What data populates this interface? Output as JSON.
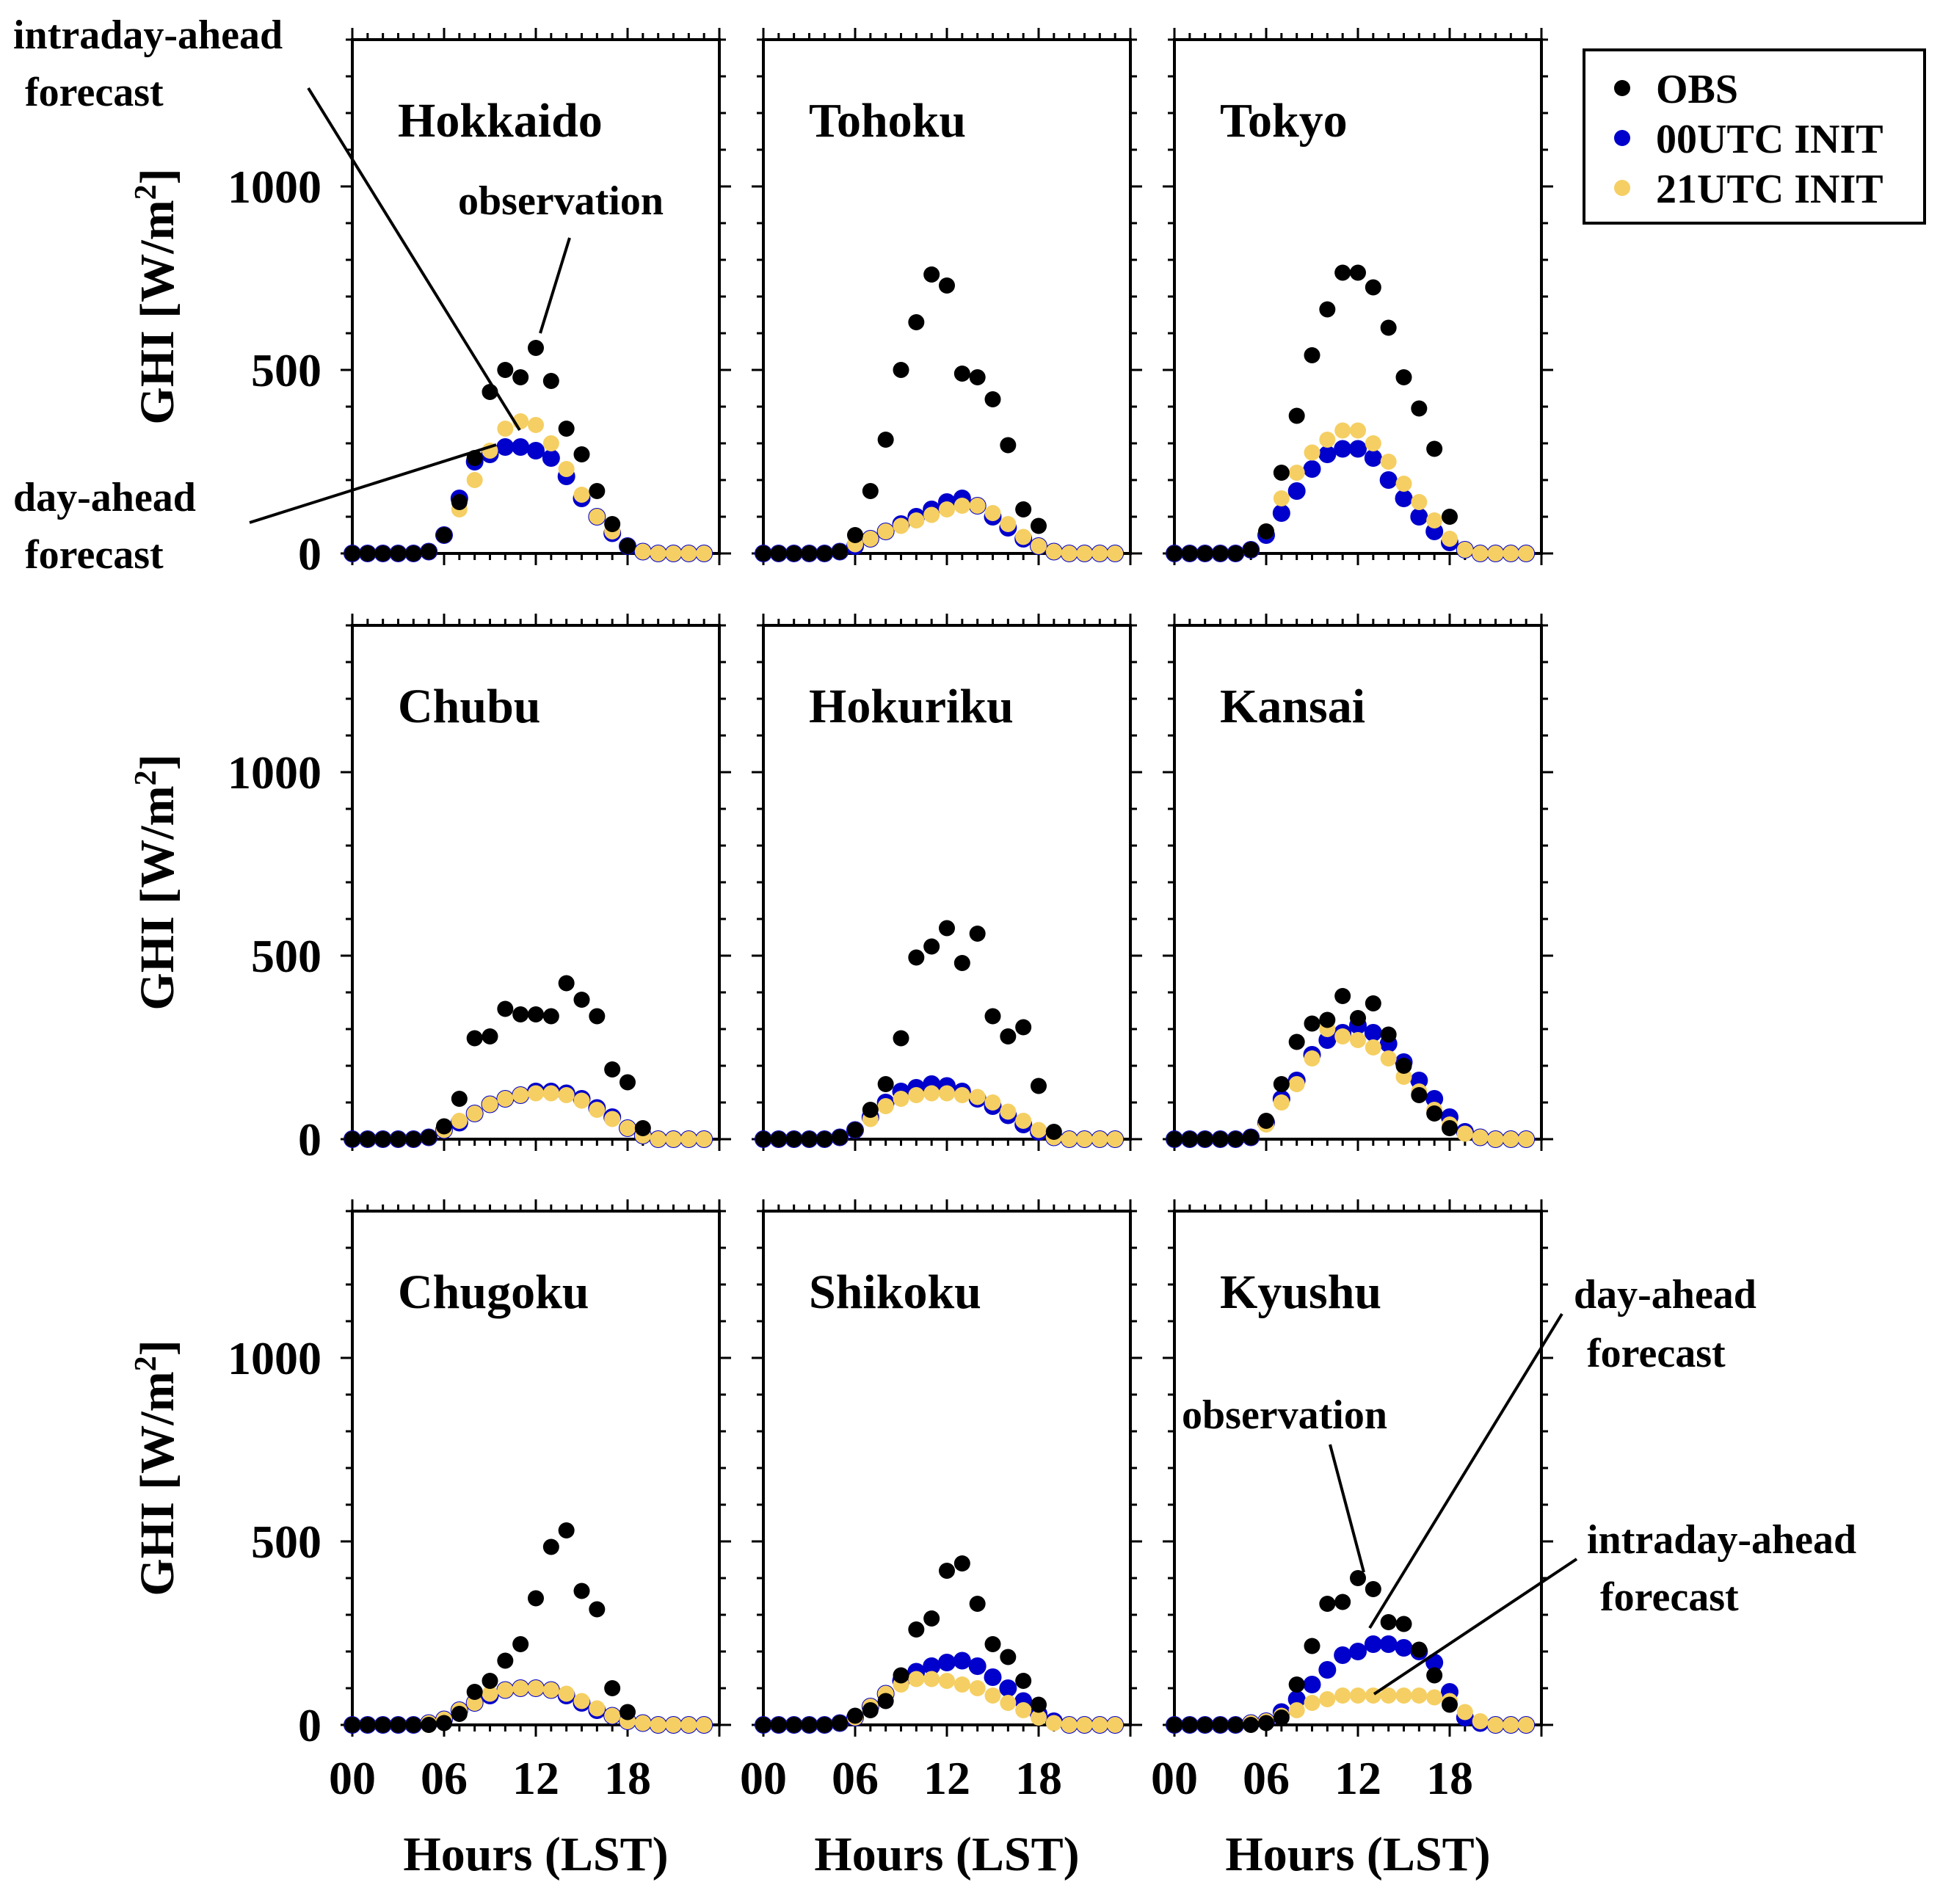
{
  "chart_data": {
    "type": "scatter",
    "layout": "3x3 small multiples",
    "xlabel": "Hours (LST)",
    "ylabel_text": "GHI [W/m",
    "ylabel_sup": "2",
    "ylabel_close": "]",
    "ylabel": "GHI [W/m2]",
    "xlim": [
      0,
      24
    ],
    "ylim": [
      0,
      1400
    ],
    "xticks": [
      "00",
      "06",
      "12",
      "18"
    ],
    "yticks": [
      "0",
      "500",
      "1000"
    ],
    "legend": [
      {
        "name": "OBS",
        "color": "#000000"
      },
      {
        "name": "00UTC INIT",
        "color": "#0000cc"
      },
      {
        "name": "21UTC INIT",
        "color": "#f5cf63"
      }
    ],
    "hours": [
      0,
      1,
      2,
      3,
      4,
      5,
      6,
      7,
      8,
      9,
      10,
      11,
      12,
      13,
      14,
      15,
      16,
      17,
      18,
      19,
      20,
      21,
      22,
      23
    ],
    "panels": [
      {
        "region": "Hokkaido",
        "obs": [
          0,
          0,
          0,
          0,
          0,
          5,
          50,
          140,
          260,
          440,
          500,
          480,
          560,
          470,
          340,
          270,
          170,
          80,
          20,
          null,
          null,
          null,
          null,
          null
        ],
        "init00": [
          0,
          0,
          0,
          0,
          0,
          5,
          50,
          150,
          250,
          270,
          290,
          290,
          280,
          260,
          210,
          150,
          100,
          55,
          20,
          5,
          0,
          0,
          0,
          0
        ],
        "init21": [
          0,
          0,
          0,
          0,
          0,
          5,
          50,
          120,
          200,
          280,
          340,
          360,
          350,
          300,
          230,
          160,
          100,
          60,
          20,
          5,
          0,
          0,
          0,
          0
        ]
      },
      {
        "region": "Tohoku",
        "obs": [
          0,
          0,
          0,
          0,
          0,
          5,
          50,
          170,
          310,
          500,
          630,
          760,
          730,
          490,
          480,
          420,
          295,
          120,
          75,
          null,
          null,
          null,
          null,
          null
        ],
        "init00": [
          0,
          0,
          0,
          0,
          0,
          5,
          20,
          40,
          60,
          80,
          100,
          120,
          140,
          150,
          130,
          100,
          70,
          40,
          20,
          5,
          0,
          0,
          0,
          0
        ],
        "init21": [
          0,
          0,
          0,
          0,
          0,
          5,
          25,
          40,
          60,
          75,
          90,
          105,
          120,
          130,
          130,
          110,
          80,
          45,
          20,
          5,
          0,
          0,
          0,
          0
        ]
      },
      {
        "region": "Tokyo",
        "obs": [
          0,
          0,
          0,
          0,
          0,
          10,
          60,
          220,
          375,
          540,
          665,
          765,
          765,
          725,
          615,
          480,
          395,
          285,
          100,
          null,
          null,
          null,
          null,
          null
        ],
        "init00": [
          0,
          0,
          0,
          0,
          0,
          10,
          50,
          110,
          170,
          230,
          270,
          285,
          285,
          260,
          200,
          150,
          100,
          60,
          30,
          10,
          0,
          0,
          0,
          0
        ],
        "init21": [
          0,
          0,
          0,
          0,
          0,
          10,
          60,
          150,
          220,
          275,
          310,
          335,
          335,
          300,
          250,
          190,
          140,
          90,
          40,
          10,
          0,
          0,
          0,
          0
        ]
      },
      {
        "region": "Chubu",
        "obs": [
          0,
          0,
          0,
          0,
          0,
          5,
          35,
          110,
          275,
          280,
          355,
          340,
          340,
          335,
          425,
          380,
          335,
          190,
          155,
          30,
          null,
          null,
          null,
          null
        ],
        "init00": [
          0,
          0,
          0,
          0,
          0,
          5,
          25,
          45,
          70,
          95,
          110,
          120,
          130,
          130,
          125,
          110,
          85,
          60,
          30,
          10,
          0,
          0,
          0,
          0
        ],
        "init21": [
          0,
          0,
          0,
          0,
          0,
          5,
          25,
          50,
          70,
          95,
          110,
          120,
          125,
          125,
          120,
          105,
          80,
          55,
          30,
          10,
          0,
          0,
          0,
          0
        ]
      },
      {
        "region": "Hokuriku",
        "obs": [
          0,
          0,
          0,
          0,
          0,
          5,
          25,
          80,
          150,
          275,
          495,
          525,
          575,
          480,
          560,
          335,
          280,
          305,
          145,
          20,
          null,
          null,
          null,
          null
        ],
        "init00": [
          0,
          0,
          0,
          0,
          0,
          5,
          25,
          60,
          100,
          130,
          140,
          150,
          145,
          130,
          110,
          90,
          65,
          40,
          20,
          5,
          0,
          0,
          0,
          0
        ],
        "init21": [
          0,
          0,
          0,
          0,
          0,
          5,
          25,
          55,
          90,
          110,
          120,
          125,
          125,
          120,
          115,
          100,
          75,
          50,
          25,
          5,
          0,
          0,
          0,
          0
        ]
      },
      {
        "region": "Kansai",
        "obs": [
          0,
          0,
          0,
          0,
          0,
          5,
          50,
          150,
          265,
          315,
          325,
          390,
          330,
          370,
          285,
          200,
          120,
          70,
          30,
          null,
          null,
          null,
          null,
          null
        ],
        "init00": [
          0,
          0,
          0,
          0,
          0,
          5,
          45,
          110,
          160,
          230,
          270,
          290,
          310,
          290,
          260,
          210,
          160,
          110,
          60,
          20,
          5,
          0,
          0,
          0
        ],
        "init21": [
          0,
          0,
          0,
          0,
          0,
          5,
          40,
          100,
          150,
          220,
          300,
          280,
          270,
          250,
          220,
          170,
          130,
          80,
          40,
          15,
          5,
          0,
          0,
          0
        ]
      },
      {
        "region": "Chugoku",
        "obs": [
          0,
          0,
          0,
          0,
          0,
          0,
          5,
          30,
          90,
          120,
          175,
          220,
          345,
          485,
          530,
          365,
          315,
          100,
          35,
          null,
          null,
          null,
          null,
          null
        ],
        "init00": [
          0,
          0,
          0,
          0,
          0,
          5,
          15,
          40,
          60,
          80,
          95,
          100,
          100,
          95,
          80,
          60,
          40,
          25,
          10,
          5,
          0,
          0,
          0,
          0
        ],
        "init21": [
          0,
          0,
          0,
          0,
          0,
          5,
          15,
          40,
          60,
          85,
          95,
          100,
          100,
          95,
          85,
          65,
          45,
          25,
          10,
          5,
          0,
          0,
          0,
          0
        ]
      },
      {
        "region": "Shikoku",
        "obs": [
          0,
          0,
          0,
          0,
          0,
          5,
          25,
          40,
          65,
          135,
          260,
          290,
          420,
          440,
          330,
          220,
          185,
          120,
          55,
          null,
          null,
          null,
          null,
          null
        ],
        "init00": [
          0,
          0,
          0,
          0,
          0,
          5,
          20,
          50,
          85,
          120,
          145,
          160,
          170,
          175,
          160,
          130,
          100,
          65,
          30,
          10,
          0,
          0,
          0,
          0
        ],
        "init21": [
          0,
          0,
          0,
          0,
          0,
          5,
          20,
          50,
          85,
          110,
          125,
          125,
          120,
          110,
          100,
          80,
          60,
          40,
          20,
          5,
          0,
          0,
          0,
          0
        ]
      },
      {
        "region": "Kyushu",
        "obs": [
          0,
          0,
          0,
          0,
          0,
          0,
          5,
          20,
          110,
          215,
          330,
          335,
          400,
          370,
          280,
          275,
          205,
          135,
          55,
          null,
          null,
          null,
          null,
          null
        ],
        "init00": [
          0,
          0,
          0,
          0,
          0,
          5,
          10,
          35,
          70,
          110,
          150,
          190,
          200,
          220,
          220,
          210,
          200,
          170,
          90,
          20,
          5,
          0,
          0,
          0
        ],
        "init21": [
          0,
          0,
          0,
          0,
          0,
          5,
          10,
          25,
          40,
          60,
          70,
          80,
          80,
          80,
          80,
          80,
          80,
          75,
          65,
          35,
          10,
          0,
          0,
          0
        ]
      }
    ],
    "annotations": {
      "hokkaido_intraday_line1": "intraday-ahead",
      "hokkaido_intraday_line2": "forecast",
      "hokkaido_observation": "observation",
      "hokkaido_dayahead_line1": "day-ahead",
      "hokkaido_dayahead_line2": "forecast",
      "kyushu_dayahead_line1": "day-ahead",
      "kyushu_dayahead_line2": "forecast",
      "kyushu_observation": "observation",
      "kyushu_intraday_line1": "intraday-ahead",
      "kyushu_intraday_line2": "forecast"
    }
  }
}
